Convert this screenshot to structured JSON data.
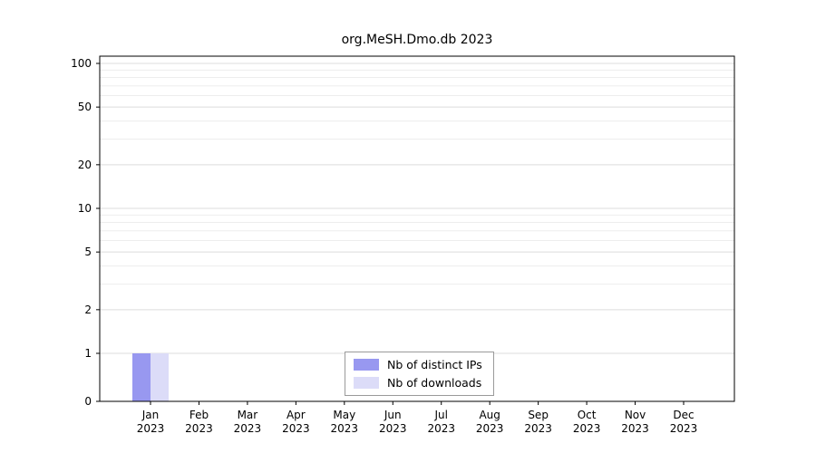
{
  "chart_data": {
    "type": "bar",
    "title": "org.MeSH.Dmo.db 2023",
    "year": "2023",
    "categories": [
      "Jan",
      "Feb",
      "Mar",
      "Apr",
      "May",
      "Jun",
      "Jul",
      "Aug",
      "Sep",
      "Oct",
      "Nov",
      "Dec"
    ],
    "series": [
      {
        "name": "Nb of distinct IPs",
        "color": "#9898f0",
        "values": [
          1,
          0,
          0,
          0,
          0,
          0,
          0,
          0,
          0,
          0,
          0,
          0
        ]
      },
      {
        "name": "Nb of downloads",
        "color": "#dcdcf8",
        "values": [
          1,
          0,
          0,
          0,
          0,
          0,
          0,
          0,
          0,
          0,
          0,
          0
        ]
      }
    ],
    "yscale": "log",
    "yticks": [
      0,
      1,
      2,
      5,
      10,
      20,
      50,
      100
    ],
    "ylim": [
      0,
      100
    ],
    "grid": "horizontal major and minor log gridlines",
    "legend_position": "bottom-center inside plot",
    "axis_color": "#000000",
    "grid_major_color": "#dcdcdc",
    "grid_minor_color": "#ededed"
  }
}
